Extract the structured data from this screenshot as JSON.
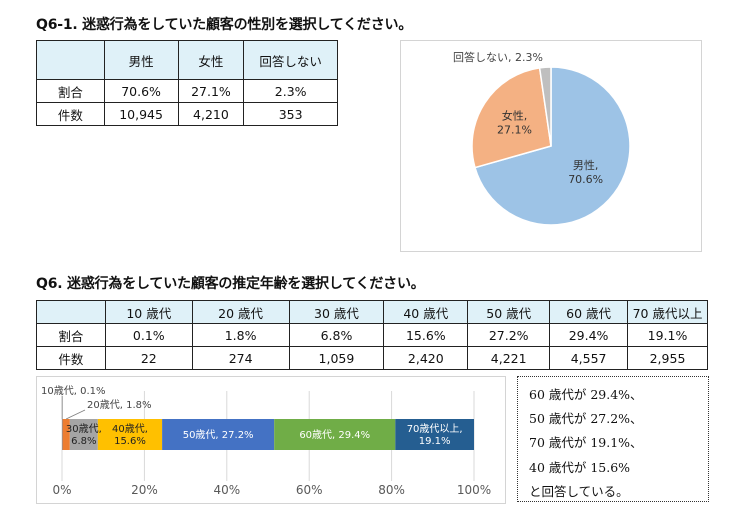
{
  "gender_section": {
    "title": "Q6-1. 迷惑行為をしていた顧客の性別を選択してください。",
    "table": {
      "columns": [
        "",
        "男性",
        "女性",
        "回答しない"
      ],
      "rows": [
        {
          "label": "割合",
          "values": [
            "70.6%",
            "27.1%",
            "2.3%"
          ]
        },
        {
          "label": "件数",
          "values": [
            "10,945",
            "4,210",
            "353"
          ]
        }
      ]
    }
  },
  "age_section": {
    "title": "Q6. 迷惑行為をしていた顧客の推定年齢を選択してください。",
    "table": {
      "columns": [
        "",
        "10 歳代",
        "20 歳代",
        "30 歳代",
        "40 歳代",
        "50 歳代",
        "60 歳代",
        "70 歳代以上"
      ],
      "rows": [
        {
          "label": "割合",
          "values": [
            "0.1%",
            "1.8%",
            "6.8%",
            "15.6%",
            "27.2%",
            "29.4%",
            "19.1%"
          ]
        },
        {
          "label": "件数",
          "values": [
            "22",
            "274",
            "1,059",
            "2,420",
            "4,221",
            "4,557",
            "2,955"
          ]
        }
      ]
    }
  },
  "chart_data": [
    {
      "type": "pie",
      "labels": [
        "男性",
        "女性",
        "回答しない"
      ],
      "values": [
        70.6,
        27.1,
        2.3
      ],
      "value_labels": [
        "70.6%",
        "27.1%",
        "2.3%"
      ],
      "colors": [
        "#9dc3e6",
        "#f4b183",
        "#bfbfbf"
      ],
      "start": "12 o'clock, clockwise"
    },
    {
      "type": "bar",
      "orientation": "horizontal",
      "stacked": true,
      "categories": [
        "10歳代",
        "20歳代",
        "30歳代",
        "40歳代",
        "50歳代",
        "60歳代",
        "70歳代以上"
      ],
      "values": [
        0.1,
        1.8,
        6.8,
        15.6,
        27.2,
        29.4,
        19.1
      ],
      "value_labels": [
        "0.1%",
        "1.8%",
        "6.8%",
        "15.6%",
        "27.2%",
        "29.4%",
        "19.1%"
      ],
      "colors": [
        "#5b9bd5",
        "#ed7d31",
        "#a5a5a5",
        "#ffc000",
        "#4472c4",
        "#70ad47",
        "#255e91"
      ],
      "label_colors": [
        "#222222",
        "#222222",
        "#222222",
        "#222222",
        "#ffffff",
        "#ffffff",
        "#ffffff"
      ],
      "x_ticks": [
        "0%",
        "20%",
        "40%",
        "60%",
        "80%",
        "100%"
      ],
      "xlim": [
        0,
        100
      ],
      "grid": "vertical"
    }
  ],
  "note": {
    "lines": [
      "60 歳代が 29.4%、",
      "50 歳代が 27.2%、",
      "70 歳代が 19.1%、",
      "40 歳代が 15.6%",
      "と回答している。"
    ]
  }
}
